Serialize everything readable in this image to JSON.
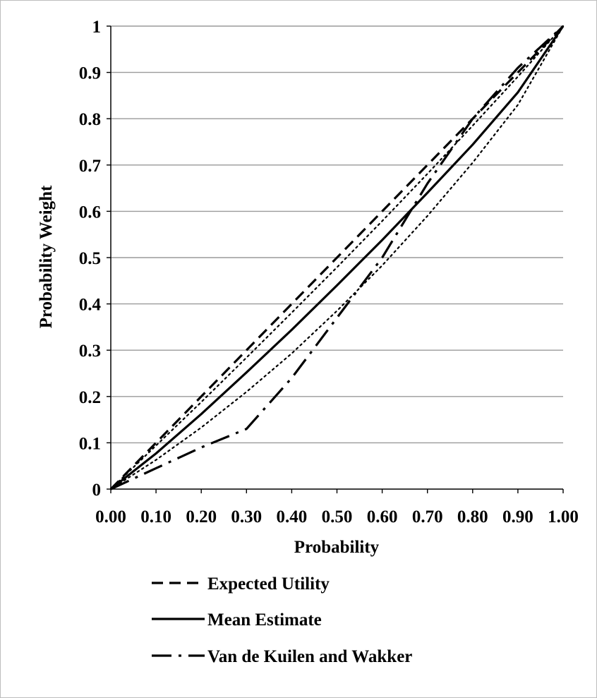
{
  "chart_data": {
    "type": "line",
    "title": "",
    "xlabel": "Probability",
    "ylabel": "Probability Weight",
    "xlim": [
      0,
      1
    ],
    "ylim": [
      0,
      1
    ],
    "grid": "horizontal",
    "legend_position": "bottom",
    "x_ticks": [
      "0.00",
      "0.10",
      "0.20",
      "0.30",
      "0.40",
      "0.50",
      "0.60",
      "0.70",
      "0.80",
      "0.90",
      "1.00"
    ],
    "y_ticks": [
      "0",
      "0.1",
      "0.2",
      "0.3",
      "0.4",
      "0.5",
      "0.6",
      "0.7",
      "0.8",
      "0.9",
      "1"
    ],
    "series": [
      {
        "name": "Expected Utility",
        "style": "dashed",
        "x": [
          0,
          0.1,
          0.2,
          0.3,
          0.4,
          0.5,
          0.6,
          0.7,
          0.8,
          0.9,
          1
        ],
        "y": [
          0,
          0.1,
          0.2,
          0.3,
          0.4,
          0.5,
          0.6,
          0.7,
          0.8,
          0.9,
          1
        ]
      },
      {
        "name": "Mean Estimate",
        "style": "solid",
        "x": [
          0,
          0.1,
          0.2,
          0.3,
          0.4,
          0.5,
          0.6,
          0.7,
          0.8,
          0.9,
          1
        ],
        "y": [
          0,
          0.077,
          0.162,
          0.252,
          0.344,
          0.44,
          0.538,
          0.64,
          0.744,
          0.857,
          1
        ]
      },
      {
        "name": "Van de Kuilen and Wakker",
        "style": "dash-dot",
        "x": [
          0,
          0.1,
          0.2,
          0.3,
          0.4,
          0.5,
          0.6,
          0.7,
          0.8,
          0.9,
          1
        ],
        "y": [
          0,
          0.045,
          0.09,
          0.13,
          0.24,
          0.37,
          0.5,
          0.66,
          0.8,
          0.91,
          1
        ]
      },
      {
        "name": "",
        "style": "dotted",
        "x": [
          0,
          0.1,
          0.2,
          0.3,
          0.4,
          0.5,
          0.6,
          0.7,
          0.8,
          0.9,
          1
        ],
        "y": [
          0,
          0.094,
          0.188,
          0.284,
          0.381,
          0.479,
          0.579,
          0.681,
          0.785,
          0.891,
          1
        ]
      },
      {
        "name": "",
        "style": "dotted",
        "x": [
          0,
          0.1,
          0.2,
          0.3,
          0.4,
          0.5,
          0.6,
          0.7,
          0.8,
          0.9,
          1
        ],
        "y": [
          0,
          0.063,
          0.133,
          0.21,
          0.293,
          0.385,
          0.483,
          0.59,
          0.705,
          0.83,
          1
        ]
      }
    ]
  },
  "colors": {
    "line": "#000000",
    "grid": "#9a9a9a",
    "axis": "#000000",
    "frame": "#bdbdbd"
  }
}
